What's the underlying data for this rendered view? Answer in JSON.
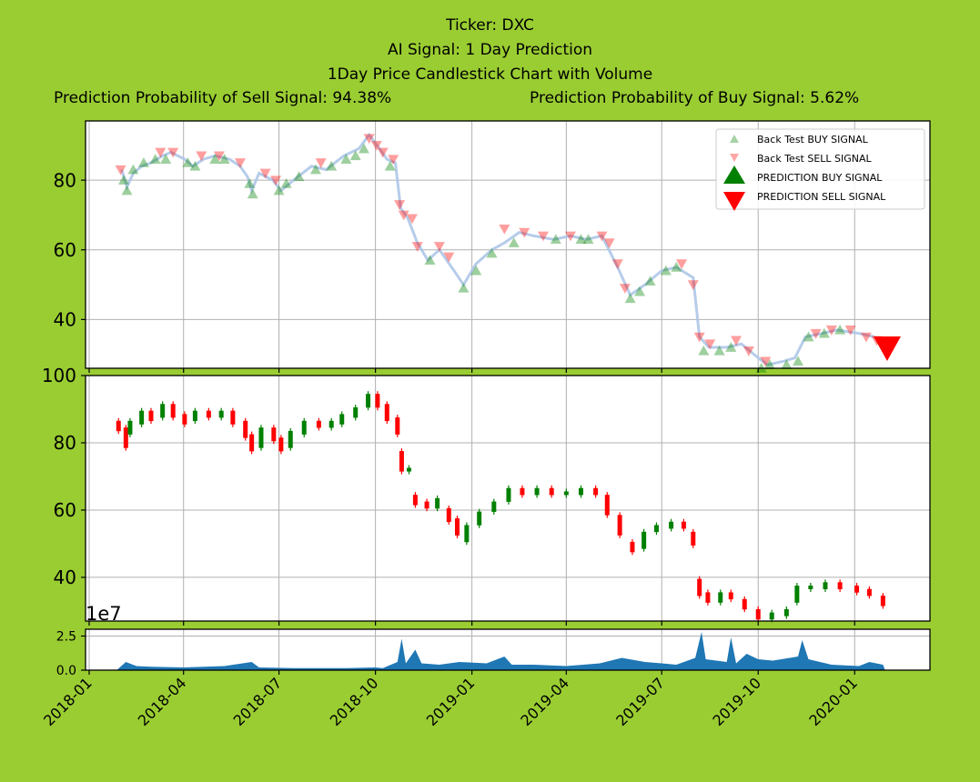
{
  "colors": {
    "background": "#9acd32",
    "plot_bg": "#ffffff",
    "buy": "#008000",
    "sell": "#ff0000",
    "price_line": "#aec7e8",
    "volume": "#1f77b4",
    "grid": "#b0b0b0"
  },
  "titles": {
    "ticker": "Ticker: DXC",
    "signal": "AI Signal: 1 Day Prediction",
    "chart": "1Day Price Candlestick Chart with Volume",
    "sell_prob": "Prediction Probability of Sell Signal: 94.38%",
    "buy_prob": "Prediction Probability of Buy Signal: 5.62%"
  },
  "chart_data": [
    {
      "type": "scatter",
      "name": "signal-panel",
      "x_ticks": [
        "2018-01",
        "2018-04",
        "2018-07",
        "2018-10",
        "2019-01",
        "2019-04",
        "2019-07",
        "2019-10",
        "2020-01"
      ],
      "yticks": [
        40,
        60,
        80
      ],
      "ylim": [
        26,
        97
      ],
      "grid": true,
      "legend": {
        "placement": "top-right",
        "entries": [
          "Back Test BUY SIGNAL",
          "Back Test SELL SIGNAL",
          "PREDICTION BUY SIGNAL",
          "PREDICTION SELL SIGNAL"
        ]
      },
      "price_series": [
        [
          "2018-02-01",
          83
        ],
        [
          "2018-02-06",
          78
        ],
        [
          "2018-02-12",
          82
        ],
        [
          "2018-02-20",
          84
        ],
        [
          "2018-03-01",
          85
        ],
        [
          "2018-03-12",
          87
        ],
        [
          "2018-03-20",
          88
        ],
        [
          "2018-04-02",
          86
        ],
        [
          "2018-04-10",
          84
        ],
        [
          "2018-04-20",
          86
        ],
        [
          "2018-05-01",
          87
        ],
        [
          "2018-05-15",
          86
        ],
        [
          "2018-05-25",
          84
        ],
        [
          "2018-06-01",
          81
        ],
        [
          "2018-06-05",
          77
        ],
        [
          "2018-06-12",
          82
        ],
        [
          "2018-06-25",
          80
        ],
        [
          "2018-07-03",
          77
        ],
        [
          "2018-07-15",
          80
        ],
        [
          "2018-08-01",
          84
        ],
        [
          "2018-08-15",
          83
        ],
        [
          "2018-09-01",
          87
        ],
        [
          "2018-09-15",
          89
        ],
        [
          "2018-09-25",
          93
        ],
        [
          "2018-10-05",
          89
        ],
        [
          "2018-10-12",
          86
        ],
        [
          "2018-10-20",
          85
        ],
        [
          "2018-10-25",
          72
        ],
        [
          "2018-11-01",
          69
        ],
        [
          "2018-11-10",
          62
        ],
        [
          "2018-11-20",
          57
        ],
        [
          "2018-12-01",
          60
        ],
        [
          "2018-12-15",
          54
        ],
        [
          "2018-12-24",
          50
        ],
        [
          "2019-01-05",
          56
        ],
        [
          "2019-01-20",
          60
        ],
        [
          "2019-02-01",
          62
        ],
        [
          "2019-02-15",
          65
        ],
        [
          "2019-03-01",
          64
        ],
        [
          "2019-03-20",
          63
        ],
        [
          "2019-04-05",
          64
        ],
        [
          "2019-04-20",
          63
        ],
        [
          "2019-05-05",
          64
        ],
        [
          "2019-05-20",
          55
        ],
        [
          "2019-06-01",
          47
        ],
        [
          "2019-06-15",
          50
        ],
        [
          "2019-07-01",
          54
        ],
        [
          "2019-07-15",
          55
        ],
        [
          "2019-07-31",
          52
        ],
        [
          "2019-08-06",
          35
        ],
        [
          "2019-08-15",
          32
        ],
        [
          "2019-09-01",
          32
        ],
        [
          "2019-09-15",
          33
        ],
        [
          "2019-10-01",
          29
        ],
        [
          "2019-10-10",
          27
        ],
        [
          "2019-10-25",
          28
        ],
        [
          "2019-11-05",
          29
        ],
        [
          "2019-11-15",
          35
        ],
        [
          "2019-12-01",
          36
        ],
        [
          "2019-12-15",
          37
        ],
        [
          "2020-01-05",
          36
        ],
        [
          "2020-01-20",
          35
        ]
      ],
      "buy_points": [
        [
          "2018-02-03",
          80
        ],
        [
          "2018-02-06",
          77
        ],
        [
          "2018-02-12",
          83
        ],
        [
          "2018-02-22",
          85
        ],
        [
          "2018-03-05",
          86
        ],
        [
          "2018-03-15",
          86
        ],
        [
          "2018-04-05",
          85
        ],
        [
          "2018-04-12",
          84
        ],
        [
          "2018-05-01",
          86
        ],
        [
          "2018-05-10",
          86
        ],
        [
          "2018-06-03",
          79
        ],
        [
          "2018-06-06",
          76
        ],
        [
          "2018-07-01",
          77
        ],
        [
          "2018-07-08",
          79
        ],
        [
          "2018-07-20",
          81
        ],
        [
          "2018-08-05",
          83
        ],
        [
          "2018-08-20",
          84
        ],
        [
          "2018-09-03",
          86
        ],
        [
          "2018-09-12",
          87
        ],
        [
          "2018-09-20",
          89
        ],
        [
          "2018-10-15",
          84
        ],
        [
          "2018-11-22",
          57
        ],
        [
          "2018-12-24",
          49
        ],
        [
          "2019-01-05",
          54
        ],
        [
          "2019-01-20",
          59
        ],
        [
          "2019-02-10",
          62
        ],
        [
          "2019-03-22",
          63
        ],
        [
          "2019-04-15",
          63
        ],
        [
          "2019-04-22",
          63
        ],
        [
          "2019-06-01",
          46
        ],
        [
          "2019-06-10",
          48
        ],
        [
          "2019-06-20",
          51
        ],
        [
          "2019-07-05",
          54
        ],
        [
          "2019-07-15",
          55
        ],
        [
          "2019-08-10",
          31
        ],
        [
          "2019-08-25",
          31
        ],
        [
          "2019-09-05",
          32
        ],
        [
          "2019-10-04",
          26
        ],
        [
          "2019-10-12",
          27
        ],
        [
          "2019-10-28",
          27
        ],
        [
          "2019-11-08",
          28
        ],
        [
          "2019-11-18",
          35
        ],
        [
          "2019-12-03",
          36
        ],
        [
          "2019-12-18",
          37
        ]
      ],
      "sell_points": [
        [
          "2018-01-31",
          83
        ],
        [
          "2018-03-10",
          88
        ],
        [
          "2018-03-22",
          88
        ],
        [
          "2018-04-18",
          87
        ],
        [
          "2018-05-05",
          87
        ],
        [
          "2018-05-25",
          85
        ],
        [
          "2018-06-18",
          82
        ],
        [
          "2018-06-28",
          80
        ],
        [
          "2018-08-10",
          85
        ],
        [
          "2018-09-25",
          92
        ],
        [
          "2018-10-02",
          90
        ],
        [
          "2018-10-08",
          88
        ],
        [
          "2018-10-18",
          86
        ],
        [
          "2018-10-24",
          73
        ],
        [
          "2018-10-28",
          70
        ],
        [
          "2018-11-05",
          69
        ],
        [
          "2018-11-10",
          61
        ],
        [
          "2018-12-01",
          61
        ],
        [
          "2018-12-10",
          58
        ],
        [
          "2019-02-01",
          66
        ],
        [
          "2019-02-20",
          65
        ],
        [
          "2019-03-10",
          64
        ],
        [
          "2019-04-05",
          64
        ],
        [
          "2019-05-05",
          64
        ],
        [
          "2019-05-12",
          62
        ],
        [
          "2019-05-20",
          56
        ],
        [
          "2019-05-27",
          49
        ],
        [
          "2019-07-20",
          56
        ],
        [
          "2019-07-31",
          50
        ],
        [
          "2019-08-06",
          35
        ],
        [
          "2019-08-16",
          33
        ],
        [
          "2019-09-10",
          34
        ],
        [
          "2019-09-22",
          31
        ],
        [
          "2019-10-08",
          28
        ],
        [
          "2019-11-25",
          36
        ],
        [
          "2019-12-10",
          37
        ],
        [
          "2019-12-28",
          37
        ],
        [
          "2020-01-12",
          35
        ],
        [
          "2020-01-22",
          34
        ]
      ],
      "prediction_sell": [
        "2020-02-01",
        32
      ]
    },
    {
      "type": "candlestick",
      "name": "price-panel",
      "yticks": [
        40,
        60,
        80,
        100
      ],
      "ylim": [
        27,
        100
      ],
      "grid": true,
      "candles": [
        [
          "2018-01-29",
          86,
          84,
          "sell"
        ],
        [
          "2018-02-05",
          84,
          79,
          "sell"
        ],
        [
          "2018-02-09",
          83,
          86,
          "buy"
        ],
        [
          "2018-02-20",
          86,
          89,
          "buy"
        ],
        [
          "2018-03-01",
          89,
          87,
          "sell"
        ],
        [
          "2018-03-12",
          88,
          91,
          "buy"
        ],
        [
          "2018-03-22",
          91,
          88,
          "sell"
        ],
        [
          "2018-04-02",
          88,
          86,
          "sell"
        ],
        [
          "2018-04-12",
          87,
          89,
          "buy"
        ],
        [
          "2018-04-25",
          89,
          88,
          "sell"
        ],
        [
          "2018-05-07",
          88,
          89,
          "buy"
        ],
        [
          "2018-05-18",
          89,
          86,
          "sell"
        ],
        [
          "2018-05-30",
          86,
          82,
          "sell"
        ],
        [
          "2018-06-05",
          82,
          78,
          "sell"
        ],
        [
          "2018-06-14",
          79,
          84,
          "buy"
        ],
        [
          "2018-06-26",
          84,
          81,
          "sell"
        ],
        [
          "2018-07-03",
          81,
          78,
          "sell"
        ],
        [
          "2018-07-12",
          79,
          83,
          "buy"
        ],
        [
          "2018-07-25",
          83,
          86,
          "buy"
        ],
        [
          "2018-08-08",
          86,
          85,
          "sell"
        ],
        [
          "2018-08-20",
          85,
          86,
          "buy"
        ],
        [
          "2018-08-30",
          86,
          88,
          "buy"
        ],
        [
          "2018-09-12",
          88,
          90,
          "buy"
        ],
        [
          "2018-09-24",
          91,
          94,
          "buy"
        ],
        [
          "2018-10-03",
          94,
          91,
          "sell"
        ],
        [
          "2018-10-12",
          91,
          87,
          "sell"
        ],
        [
          "2018-10-22",
          87,
          83,
          "sell"
        ],
        [
          "2018-10-26",
          77,
          72,
          "sell"
        ],
        [
          "2018-11-02",
          72,
          72,
          "buy"
        ],
        [
          "2018-11-08",
          64,
          62,
          "sell"
        ],
        [
          "2018-11-19",
          62,
          61,
          "sell"
        ],
        [
          "2018-11-29",
          61,
          63,
          "buy"
        ],
        [
          "2018-12-10",
          60,
          57,
          "sell"
        ],
        [
          "2018-12-18",
          57,
          53,
          "sell"
        ],
        [
          "2018-12-27",
          51,
          55,
          "buy"
        ],
        [
          "2019-01-08",
          56,
          59,
          "buy"
        ],
        [
          "2019-01-22",
          60,
          62,
          "buy"
        ],
        [
          "2019-02-05",
          63,
          66,
          "buy"
        ],
        [
          "2019-02-18",
          66,
          65,
          "sell"
        ],
        [
          "2019-03-04",
          65,
          66,
          "buy"
        ],
        [
          "2019-03-18",
          66,
          65,
          "sell"
        ],
        [
          "2019-04-01",
          65,
          65,
          "buy"
        ],
        [
          "2019-04-15",
          65,
          66,
          "buy"
        ],
        [
          "2019-04-29",
          66,
          65,
          "sell"
        ],
        [
          "2019-05-10",
          64,
          59,
          "sell"
        ],
        [
          "2019-05-22",
          58,
          53,
          "sell"
        ],
        [
          "2019-06-03",
          50,
          48,
          "sell"
        ],
        [
          "2019-06-14",
          49,
          53,
          "buy"
        ],
        [
          "2019-06-26",
          54,
          55,
          "buy"
        ],
        [
          "2019-07-10",
          55,
          56,
          "buy"
        ],
        [
          "2019-07-22",
          56,
          55,
          "sell"
        ],
        [
          "2019-07-31",
          53,
          50,
          "sell"
        ],
        [
          "2019-08-06",
          39,
          35,
          "sell"
        ],
        [
          "2019-08-14",
          35,
          33,
          "sell"
        ],
        [
          "2019-08-26",
          33,
          35,
          "buy"
        ],
        [
          "2019-09-05",
          35,
          34,
          "sell"
        ],
        [
          "2019-09-18",
          33,
          31,
          "sell"
        ],
        [
          "2019-10-01",
          30,
          28,
          "sell"
        ],
        [
          "2019-10-14",
          28,
          29,
          "buy"
        ],
        [
          "2019-10-28",
          29,
          30,
          "buy"
        ],
        [
          "2019-11-07",
          33,
          37,
          "buy"
        ],
        [
          "2019-11-20",
          37,
          37,
          "buy"
        ],
        [
          "2019-12-04",
          37,
          38,
          "buy"
        ],
        [
          "2019-12-18",
          38,
          37,
          "sell"
        ],
        [
          "2020-01-03",
          37,
          36,
          "sell"
        ],
        [
          "2020-01-15",
          36,
          35,
          "sell"
        ],
        [
          "2020-01-28",
          34,
          32,
          "sell"
        ]
      ]
    },
    {
      "type": "area",
      "name": "volume-panel",
      "scale_label": "1e7",
      "yticks": [
        "0.0",
        "2.5"
      ],
      "ylim": [
        0,
        3
      ],
      "grid": true,
      "volume": [
        [
          "2018-01-28",
          0.05
        ],
        [
          "2018-02-05",
          0.6
        ],
        [
          "2018-02-15",
          0.3
        ],
        [
          "2018-03-01",
          0.25
        ],
        [
          "2018-04-01",
          0.2
        ],
        [
          "2018-05-10",
          0.3
        ],
        [
          "2018-06-05",
          0.6
        ],
        [
          "2018-06-12",
          0.2
        ],
        [
          "2018-07-15",
          0.15
        ],
        [
          "2018-09-01",
          0.15
        ],
        [
          "2018-10-01",
          0.2
        ],
        [
          "2018-10-08",
          0.15
        ],
        [
          "2018-10-22",
          0.6
        ],
        [
          "2018-10-26",
          2.3
        ],
        [
          "2018-10-30",
          0.5
        ],
        [
          "2018-11-08",
          1.5
        ],
        [
          "2018-11-14",
          0.5
        ],
        [
          "2018-12-01",
          0.4
        ],
        [
          "2018-12-20",
          0.6
        ],
        [
          "2019-01-15",
          0.5
        ],
        [
          "2019-02-01",
          1.0
        ],
        [
          "2019-02-08",
          0.4
        ],
        [
          "2019-03-01",
          0.4
        ],
        [
          "2019-04-01",
          0.3
        ],
        [
          "2019-05-03",
          0.5
        ],
        [
          "2019-05-24",
          0.9
        ],
        [
          "2019-06-15",
          0.6
        ],
        [
          "2019-07-01",
          0.5
        ],
        [
          "2019-07-15",
          0.4
        ],
        [
          "2019-08-02",
          0.9
        ],
        [
          "2019-08-08",
          2.8
        ],
        [
          "2019-08-12",
          0.8
        ],
        [
          "2019-09-01",
          0.6
        ],
        [
          "2019-09-05",
          2.4
        ],
        [
          "2019-09-10",
          0.5
        ],
        [
          "2019-09-20",
          1.2
        ],
        [
          "2019-10-01",
          0.8
        ],
        [
          "2019-10-15",
          0.7
        ],
        [
          "2019-11-08",
          1.0
        ],
        [
          "2019-11-12",
          2.2
        ],
        [
          "2019-11-18",
          0.8
        ],
        [
          "2019-12-10",
          0.4
        ],
        [
          "2020-01-05",
          0.3
        ],
        [
          "2020-01-15",
          0.6
        ],
        [
          "2020-01-28",
          0.4
        ],
        [
          "2020-01-30",
          0.0
        ]
      ]
    }
  ]
}
